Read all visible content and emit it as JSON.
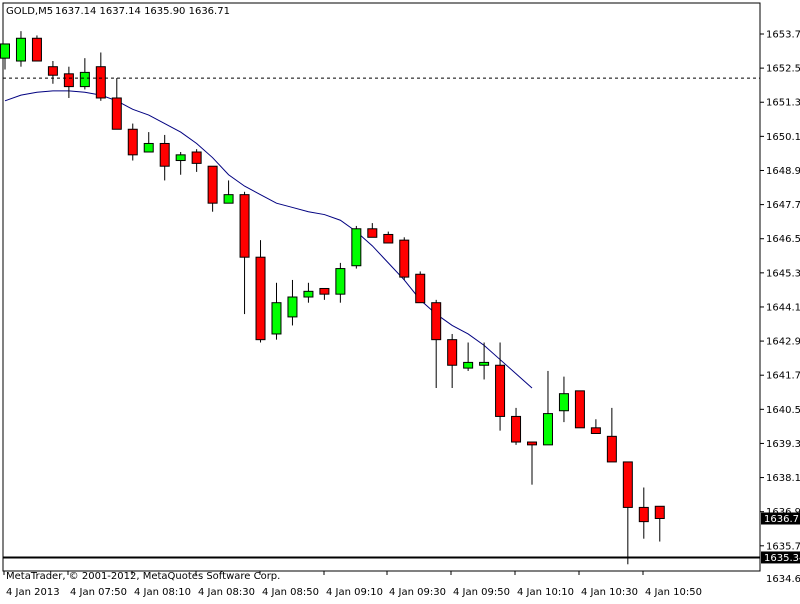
{
  "header": {
    "symbol": "GOLD,M5",
    "ohlc": "1637.14 1637.14 1635.90 1636.71"
  },
  "footer": {
    "copyright": "MetaTrader, © 2001-2012, MetaQuotes Software Corp."
  },
  "colors": {
    "bull": "#00ff00",
    "bear": "#ff0000",
    "ma": "#000080",
    "axis": "#000000",
    "background": "#ffffff"
  },
  "chart_data": {
    "type": "candlestick",
    "ylim": [
      1634.6,
      1654.0
    ],
    "y_ticks": [
      "1653.75",
      "1652.55",
      "1651.35",
      "1650.15",
      "1648.95",
      "1647.75",
      "1646.55",
      "1645.35",
      "1644.15",
      "1642.95",
      "1641.75",
      "1640.55",
      "1639.35",
      "1638.15",
      "1636.95",
      "1635.75",
      "1634.60"
    ],
    "x_ticks": [
      "4 Jan 2013",
      "4 Jan 07:50",
      "4 Jan 08:10",
      "4 Jan 08:30",
      "4 Jan 08:50",
      "4 Jan 09:10",
      "4 Jan 09:30",
      "4 Jan 09:50",
      "4 Jan 10:10",
      "4 Jan 10:30",
      "4 Jan 10:50"
    ],
    "current_price": "1636.71",
    "horizontal_line": {
      "price": "1635.34"
    },
    "dashed_level": 1652.2,
    "ma_series": [
      1651.4,
      1651.6,
      1651.7,
      1651.75,
      1651.75,
      1651.7,
      1651.6,
      1651.4,
      1651.1,
      1650.9,
      1650.6,
      1650.3,
      1649.9,
      1649.4,
      1648.8,
      1648.4,
      1648.1,
      1647.8,
      1647.65,
      1647.5,
      1647.4,
      1647.2,
      1646.8,
      1646.3,
      1645.7,
      1645.1,
      1644.4,
      1643.9,
      1643.5,
      1643.2,
      1642.8,
      1642.3,
      1641.8,
      1641.3
    ],
    "candles": [
      {
        "o": 1652.9,
        "h": 1653.4,
        "l": 1652.5,
        "c": 1653.4
      },
      {
        "o": 1652.8,
        "h": 1653.85,
        "l": 1652.6,
        "c": 1653.6
      },
      {
        "o": 1653.6,
        "h": 1653.7,
        "l": 1652.8,
        "c": 1652.8
      },
      {
        "o": 1652.6,
        "h": 1652.8,
        "l": 1652.0,
        "c": 1652.3
      },
      {
        "o": 1652.35,
        "h": 1652.6,
        "l": 1651.5,
        "c": 1651.9
      },
      {
        "o": 1651.9,
        "h": 1652.9,
        "l": 1651.8,
        "c": 1652.4
      },
      {
        "o": 1652.6,
        "h": 1653.1,
        "l": 1651.4,
        "c": 1651.5
      },
      {
        "o": 1651.5,
        "h": 1652.2,
        "l": 1650.4,
        "c": 1650.4
      },
      {
        "o": 1650.4,
        "h": 1650.6,
        "l": 1649.3,
        "c": 1649.5
      },
      {
        "o": 1649.6,
        "h": 1650.3,
        "l": 1649.6,
        "c": 1649.9
      },
      {
        "o": 1649.9,
        "h": 1650.2,
        "l": 1648.6,
        "c": 1649.1
      },
      {
        "o": 1649.3,
        "h": 1649.6,
        "l": 1648.8,
        "c": 1649.5
      },
      {
        "o": 1649.6,
        "h": 1649.7,
        "l": 1648.9,
        "c": 1649.2
      },
      {
        "o": 1649.1,
        "h": 1649.1,
        "l": 1647.5,
        "c": 1647.8
      },
      {
        "o": 1647.8,
        "h": 1648.6,
        "l": 1647.8,
        "c": 1648.1
      },
      {
        "o": 1648.1,
        "h": 1648.2,
        "l": 1643.9,
        "c": 1645.9
      },
      {
        "o": 1645.9,
        "h": 1646.5,
        "l": 1642.9,
        "c": 1643.0
      },
      {
        "o": 1643.2,
        "h": 1645.0,
        "l": 1643.0,
        "c": 1644.3
      },
      {
        "o": 1643.8,
        "h": 1645.1,
        "l": 1643.5,
        "c": 1644.5
      },
      {
        "o": 1644.5,
        "h": 1645.0,
        "l": 1644.3,
        "c": 1644.7
      },
      {
        "o": 1644.8,
        "h": 1644.8,
        "l": 1644.4,
        "c": 1644.6
      },
      {
        "o": 1644.6,
        "h": 1645.7,
        "l": 1644.3,
        "c": 1645.5
      },
      {
        "o": 1645.6,
        "h": 1647.0,
        "l": 1645.5,
        "c": 1646.9
      },
      {
        "o": 1646.9,
        "h": 1647.1,
        "l": 1646.6,
        "c": 1646.6
      },
      {
        "o": 1646.7,
        "h": 1646.8,
        "l": 1646.4,
        "c": 1646.4
      },
      {
        "o": 1646.5,
        "h": 1646.6,
        "l": 1645.1,
        "c": 1645.2
      },
      {
        "o": 1645.3,
        "h": 1645.4,
        "l": 1644.3,
        "c": 1644.3
      },
      {
        "o": 1644.3,
        "h": 1644.4,
        "l": 1641.3,
        "c": 1643.0
      },
      {
        "o": 1643.0,
        "h": 1643.2,
        "l": 1641.3,
        "c": 1642.1
      },
      {
        "o": 1642.0,
        "h": 1642.9,
        "l": 1641.9,
        "c": 1642.2
      },
      {
        "o": 1642.1,
        "h": 1642.9,
        "l": 1641.6,
        "c": 1642.2
      },
      {
        "o": 1642.1,
        "h": 1642.9,
        "l": 1639.8,
        "c": 1640.3
      },
      {
        "o": 1640.3,
        "h": 1640.6,
        "l": 1639.3,
        "c": 1639.4
      },
      {
        "o": 1639.4,
        "h": 1639.4,
        "l": 1637.9,
        "c": 1639.3
      },
      {
        "o": 1639.3,
        "h": 1641.9,
        "l": 1639.3,
        "c": 1640.4
      },
      {
        "o": 1640.5,
        "h": 1641.7,
        "l": 1640.1,
        "c": 1641.1
      },
      {
        "o": 1641.2,
        "h": 1641.2,
        "l": 1639.9,
        "c": 1639.9
      },
      {
        "o": 1639.9,
        "h": 1640.2,
        "l": 1639.7,
        "c": 1639.7
      },
      {
        "o": 1639.6,
        "h": 1640.6,
        "l": 1638.7,
        "c": 1638.7
      },
      {
        "o": 1638.7,
        "h": 1638.7,
        "l": 1635.1,
        "c": 1637.1
      },
      {
        "o": 1637.1,
        "h": 1637.8,
        "l": 1636.0,
        "c": 1636.6
      },
      {
        "o": 1637.14,
        "h": 1637.14,
        "l": 1635.9,
        "c": 1636.71
      }
    ]
  }
}
